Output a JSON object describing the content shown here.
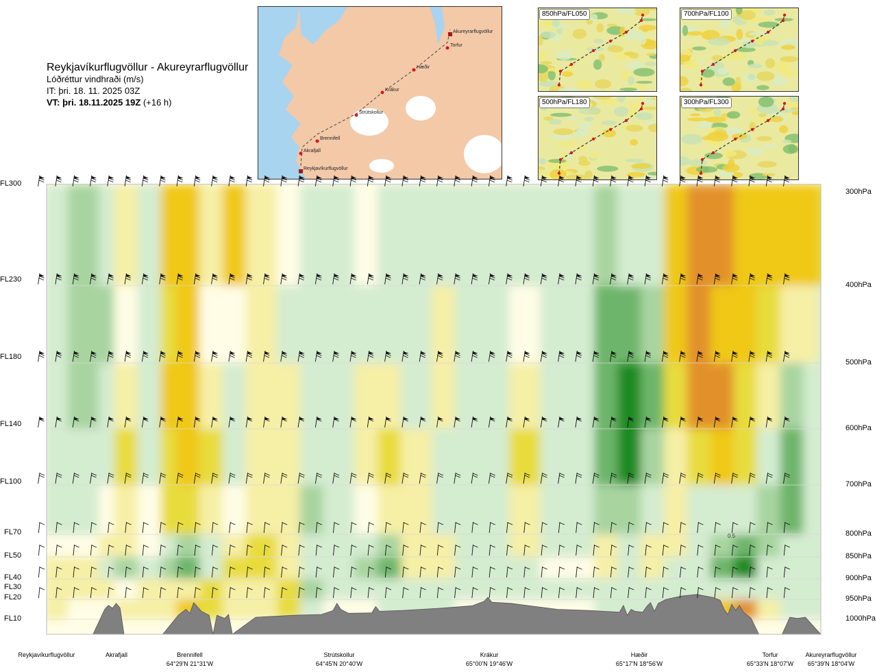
{
  "header": {
    "route_title": "Reykjavíkurflugvöllur - Akureyrarflugvöllur",
    "parameter": "Lóðréttur vindhraði (m/s)",
    "issue_time": "IT: þri. 18. 11. 2025 03Z",
    "valid_prefix": "VT: þri. 18.11.2025 19Z",
    "valid_suffix": "(+16 h)"
  },
  "route_map": {
    "waypoints": [
      "Reykjavíkurflugvöllur",
      "Akrafjall",
      "Brennifell",
      "Strútskollur",
      "Krákur",
      "Hæðir",
      "Torfur",
      "Akureyrarflugvöllur"
    ],
    "colors": {
      "sea": "#a8d4f0",
      "land": "#f3c9a8",
      "glacier": "#ffffff",
      "route": "#444444",
      "point": "#e0141e"
    }
  },
  "insets": [
    {
      "label": "850hPa/FL050"
    },
    {
      "label": "700hPa/FL100"
    },
    {
      "label": "500hPa/FL180"
    },
    {
      "label": "300hPa/FL300"
    }
  ],
  "flight_levels": [
    "FL300",
    "FL230",
    "FL180",
    "FL140",
    "FL100",
    "FL70",
    "FL50",
    "FL40",
    "FL30",
    "FL20",
    "FL10"
  ],
  "pressure_levels": [
    "300hPa",
    "400hPa",
    "500hPa",
    "600hPa",
    "700hPa",
    "800hPa",
    "850hPa",
    "900hPa",
    "950hPa",
    "1000hPa"
  ],
  "locations": [
    {
      "name": "Reykjavíkurflugvöllur",
      "coord": ""
    },
    {
      "name": "Akrafjall",
      "coord": ""
    },
    {
      "name": "Brennifell",
      "coord": "64°29'N 21°31'W"
    },
    {
      "name": "Strútskollur",
      "coord": "64°45'N 20°40'W"
    },
    {
      "name": "Krákur",
      "coord": "65°00'N 19°46'W"
    },
    {
      "name": "Hæðir",
      "coord": "65°17'N 18°56'W"
    },
    {
      "name": "Torfur",
      "coord": "65°33'N 18°07'W"
    },
    {
      "name": "Akureyrarflugvöllur",
      "coord": "65°39'N 18°04'W"
    }
  ],
  "contour_annotation": "0.5",
  "chart_data": {
    "type": "heatmap",
    "title": "Reykjavíkurflugvöllur - Akureyrarflugvöllur",
    "subtitle": "Lóðréttur vindhraði (m/s)",
    "ylabel_left": "",
    "ylabel_right": "",
    "y_levels_hpa": [
      300,
      400,
      500,
      600,
      700,
      800,
      850,
      900,
      950,
      1000
    ],
    "colors": {
      "strong_down": "#e2912a",
      "down_3": "#f0c814",
      "down_2": "#e8dc3c",
      "down_1": "#f6efa6",
      "neutral": "#fffde6",
      "up_1": "#d4ecd0",
      "up_2": "#a8d4a0",
      "up_3": "#6db56a",
      "strong_up": "#1f8a24",
      "terrain": "#808080"
    },
    "columns": [
      {
        "pos": 0.0,
        "values": [
          1,
          1,
          1,
          1,
          1,
          0,
          -1,
          -1,
          -1,
          0
        ]
      },
      {
        "pos": 0.03,
        "values": [
          2,
          2,
          2,
          1,
          1,
          0,
          -1,
          -1,
          0,
          0
        ]
      },
      {
        "pos": 0.07,
        "values": [
          1,
          2,
          1,
          1,
          0,
          -1,
          1,
          -1,
          0,
          0
        ]
      },
      {
        "pos": 0.09,
        "values": [
          -1,
          0,
          -1,
          -2,
          -1,
          -1,
          2,
          0,
          -1,
          0
        ]
      },
      {
        "pos": 0.12,
        "values": [
          1,
          1,
          1,
          1,
          0,
          0,
          1,
          -1,
          -1,
          0
        ]
      },
      {
        "pos": 0.15,
        "values": [
          -3,
          -2,
          -3,
          -2,
          -2,
          1,
          2,
          -1,
          -1,
          0
        ]
      },
      {
        "pos": 0.17,
        "values": [
          -3,
          -3,
          -3,
          -3,
          -2,
          2,
          3,
          -1,
          -3,
          0
        ]
      },
      {
        "pos": 0.2,
        "values": [
          -1,
          0,
          -1,
          -2,
          -1,
          1,
          1,
          -2,
          -2,
          0
        ]
      },
      {
        "pos": 0.23,
        "values": [
          -3,
          0,
          1,
          1,
          0,
          -1,
          -2,
          -1,
          -1,
          0
        ]
      },
      {
        "pos": 0.26,
        "values": [
          -1,
          -1,
          -1,
          -1,
          -1,
          -2,
          -2,
          -1,
          -1,
          0
        ]
      },
      {
        "pos": 0.3,
        "values": [
          0,
          1,
          -1,
          -1,
          -1,
          -1,
          -1,
          -2,
          -2,
          0
        ]
      },
      {
        "pos": 0.33,
        "values": [
          1,
          1,
          1,
          1,
          2,
          1,
          1,
          2,
          1,
          0
        ]
      },
      {
        "pos": 0.36,
        "values": [
          1,
          1,
          1,
          1,
          1,
          1,
          1,
          1,
          0,
          0
        ]
      },
      {
        "pos": 0.4,
        "values": [
          0,
          1,
          -1,
          -1,
          0,
          1,
          2,
          1,
          0,
          0
        ]
      },
      {
        "pos": 0.43,
        "values": [
          1,
          1,
          -1,
          -2,
          -1,
          2,
          3,
          1,
          1,
          0
        ]
      },
      {
        "pos": 0.46,
        "values": [
          1,
          1,
          1,
          -1,
          -1,
          -1,
          -1,
          1,
          1,
          0
        ]
      },
      {
        "pos": 0.5,
        "values": [
          1,
          -1,
          -1,
          1,
          1,
          -1,
          -1,
          1,
          1,
          0
        ]
      },
      {
        "pos": 0.53,
        "values": [
          1,
          1,
          1,
          1,
          1,
          1,
          1,
          1,
          0,
          0
        ]
      },
      {
        "pos": 0.57,
        "values": [
          1,
          1,
          1,
          1,
          1,
          1,
          1,
          1,
          0,
          0
        ]
      },
      {
        "pos": 0.6,
        "values": [
          1,
          0,
          -1,
          -2,
          -1,
          -1,
          1,
          1,
          0,
          0
        ]
      },
      {
        "pos": 0.64,
        "values": [
          1,
          1,
          1,
          1,
          1,
          1,
          0,
          1,
          0,
          0
        ]
      },
      {
        "pos": 0.67,
        "values": [
          1,
          1,
          1,
          1,
          1,
          1,
          0,
          1,
          0,
          0
        ]
      },
      {
        "pos": 0.71,
        "values": [
          2,
          3,
          3,
          3,
          2,
          -1,
          -1,
          1,
          1,
          0
        ]
      },
      {
        "pos": 0.74,
        "values": [
          1,
          3,
          4,
          4,
          2,
          1,
          1,
          1,
          1,
          0
        ]
      },
      {
        "pos": 0.77,
        "values": [
          1,
          2,
          3,
          2,
          1,
          -1,
          -1,
          1,
          1,
          0
        ]
      },
      {
        "pos": 0.8,
        "values": [
          -3,
          -3,
          -2,
          -1,
          -1,
          -1,
          1,
          1,
          1,
          0
        ]
      },
      {
        "pos": 0.83,
        "values": [
          -4,
          -4,
          -4,
          -2,
          1,
          1,
          1,
          1,
          1,
          0
        ]
      },
      {
        "pos": 0.86,
        "values": [
          -4,
          -3,
          -4,
          -3,
          1,
          2,
          3,
          1,
          -3,
          0
        ]
      },
      {
        "pos": 0.89,
        "values": [
          -3,
          -3,
          -2,
          -2,
          1,
          3,
          4,
          1,
          -4,
          0
        ]
      },
      {
        "pos": 0.92,
        "values": [
          -3,
          -2,
          -1,
          1,
          2,
          2,
          1,
          1,
          -1,
          0
        ]
      },
      {
        "pos": 0.95,
        "values": [
          -3,
          -1,
          2,
          3,
          3,
          1,
          1,
          1,
          1,
          0
        ]
      },
      {
        "pos": 0.98,
        "values": [
          -3,
          -1,
          1,
          1,
          1,
          1,
          1,
          1,
          1,
          0
        ]
      },
      {
        "pos": 1.0,
        "values": [
          -2,
          1,
          1,
          1,
          1,
          1,
          1,
          1,
          1,
          0
        ]
      }
    ],
    "terrain_profile": [
      [
        0.0,
        1000
      ],
      [
        0.06,
        1000
      ],
      [
        0.075,
        975
      ],
      [
        0.08,
        965
      ],
      [
        0.085,
        972
      ],
      [
        0.09,
        960
      ],
      [
        0.095,
        972
      ],
      [
        0.1,
        1000
      ],
      [
        0.15,
        1000
      ],
      [
        0.17,
        990
      ],
      [
        0.18,
        975
      ],
      [
        0.185,
        985
      ],
      [
        0.19,
        958
      ],
      [
        0.2,
        980
      ],
      [
        0.21,
        990
      ],
      [
        0.215,
        1000
      ],
      [
        0.22,
        990
      ],
      [
        0.23,
        998
      ],
      [
        0.235,
        988
      ],
      [
        0.24,
        1000
      ],
      [
        0.27,
        995
      ],
      [
        0.32,
        990
      ],
      [
        0.355,
        988
      ],
      [
        0.37,
        978
      ],
      [
        0.375,
        960
      ],
      [
        0.38,
        975
      ],
      [
        0.39,
        985
      ],
      [
        0.42,
        984
      ],
      [
        0.425,
        968
      ],
      [
        0.43,
        980
      ],
      [
        0.46,
        978
      ],
      [
        0.51,
        972
      ],
      [
        0.55,
        966
      ],
      [
        0.565,
        955
      ],
      [
        0.57,
        945
      ],
      [
        0.575,
        957
      ],
      [
        0.6,
        960
      ],
      [
        0.64,
        970
      ],
      [
        0.66,
        975
      ],
      [
        0.7,
        978
      ],
      [
        0.72,
        980
      ],
      [
        0.74,
        982
      ],
      [
        0.745,
        965
      ],
      [
        0.75,
        990
      ],
      [
        0.755,
        975
      ],
      [
        0.76,
        980
      ],
      [
        0.77,
        982
      ],
      [
        0.775,
        968
      ],
      [
        0.78,
        958
      ],
      [
        0.785,
        980
      ],
      [
        0.79,
        960
      ],
      [
        0.8,
        950
      ],
      [
        0.82,
        942
      ],
      [
        0.84,
        938
      ],
      [
        0.86,
        945
      ],
      [
        0.87,
        952
      ],
      [
        0.875,
        975
      ],
      [
        0.88,
        988
      ],
      [
        0.885,
        962
      ],
      [
        0.89,
        978
      ],
      [
        0.895,
        965
      ],
      [
        0.9,
        982
      ],
      [
        0.91,
        998
      ],
      [
        0.92,
        1000
      ],
      [
        0.95,
        1000
      ],
      [
        0.96,
        995
      ],
      [
        0.97,
        998
      ],
      [
        0.98,
        995
      ],
      [
        1.0,
        1000
      ]
    ],
    "wind_barb_rows_hpa": [
      300,
      400,
      500,
      600,
      700,
      800,
      850,
      900,
      950
    ],
    "grid": true
  }
}
